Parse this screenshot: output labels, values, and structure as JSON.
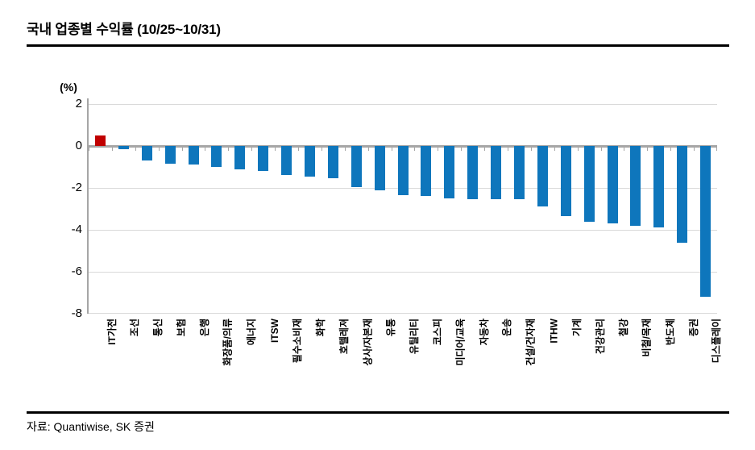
{
  "header": {
    "title": "국내 업종별 수익률 (10/25~10/31)"
  },
  "footer": {
    "source": "자료: Quantiwise, SK 증권"
  },
  "colors": {
    "bar_blue": "#0e76bc",
    "bar_red_highlight": "#c00000",
    "gridline": "#d9d9d9",
    "axis_gray": "#a6a6a6",
    "text": "#000000"
  },
  "chart_data": {
    "type": "bar",
    "title": "국내 업종별 수익률 (10/25~10/31)",
    "unit_label": "(%)",
    "xlabel": "",
    "ylabel": "수익률 (%)",
    "ylim": [
      -8,
      2
    ],
    "yticks": [
      2,
      0,
      -2,
      -4,
      -6,
      -8
    ],
    "grid": true,
    "legend_position": "none",
    "x_label_rotation_deg": -90,
    "highlight_rule": "positive value bar shown in red",
    "categories": [
      "IT가전",
      "조선",
      "통신",
      "보험",
      "은행",
      "화장품/의류",
      "에너지",
      "ITSW",
      "필수소비재",
      "화학",
      "호텔레져",
      "상사/자본재",
      "유통",
      "유틸리티",
      "코스피",
      "미디어/교육",
      "자동차",
      "운송",
      "건설/건자재",
      "ITHW",
      "기계",
      "건강관리",
      "철강",
      "비철/목재",
      "반도체",
      "증권",
      "디스플레이"
    ],
    "values": [
      0.5,
      -0.15,
      -0.7,
      -0.85,
      -0.9,
      -1.0,
      -1.1,
      -1.2,
      -1.4,
      -1.45,
      -1.55,
      -1.95,
      -2.1,
      -2.35,
      -2.4,
      -2.5,
      -2.55,
      -2.55,
      -2.55,
      -2.9,
      -3.35,
      -3.6,
      -3.7,
      -3.8,
      -3.9,
      -4.6,
      -7.2
    ]
  }
}
